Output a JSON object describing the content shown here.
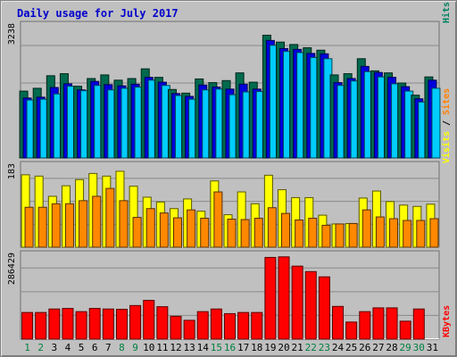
{
  "chart_data": {
    "type": "bar",
    "title": "Daily usage for July 2017",
    "days": [
      "1",
      "2",
      "3",
      "4",
      "5",
      "6",
      "7",
      "8",
      "9",
      "10",
      "11",
      "12",
      "13",
      "14",
      "15",
      "16",
      "17",
      "18",
      "19",
      "20",
      "21",
      "22",
      "23",
      "24",
      "25",
      "26",
      "27",
      "28",
      "29",
      "30",
      "31"
    ],
    "weekend_days": [
      "1",
      "2",
      "8",
      "9",
      "15",
      "16",
      "22",
      "23",
      "29",
      "30"
    ],
    "panels": [
      {
        "id": "hits",
        "max_label": "3238",
        "ylim": [
          0,
          3238
        ],
        "legend": [
          {
            "text": "Pages",
            "color": "#00c0d0"
          },
          {
            "text": "Files",
            "color": "#0000ff"
          },
          {
            "text": "Hits",
            "color": "#008060"
          }
        ],
        "series": [
          {
            "name": "Hits",
            "color": "#006a4e",
            "values": [
              1650,
              1720,
              2030,
              2080,
              1770,
              1960,
              2050,
              1920,
              1960,
              2200,
              1990,
              1690,
              1600,
              1950,
              1860,
              1910,
              2100,
              1870,
              3030,
              2860,
              2800,
              2720,
              2660,
              2050,
              2080,
              2450,
              2150,
              2100,
              1850,
              1550,
              2000
            ]
          },
          {
            "name": "Files",
            "color": "#0000dd",
            "values": [
              1480,
              1500,
              1740,
              1830,
              1680,
              1890,
              1810,
              1780,
              1820,
              1990,
              1870,
              1590,
              1520,
              1800,
              1750,
              1700,
              1820,
              1700,
              2900,
              2700,
              2680,
              2580,
              2570,
              1860,
              1960,
              2260,
              2110,
              1990,
              1760,
              1460,
              1920
            ]
          },
          {
            "name": "Pages",
            "color": "#00ccff",
            "values": [
              1430,
              1450,
              1580,
              1770,
              1660,
              1790,
              1680,
              1720,
              1750,
              1920,
              1790,
              1540,
              1450,
              1680,
              1700,
              1560,
              1630,
              1640,
              2780,
              2630,
              2600,
              2480,
              2450,
              1790,
              1900,
              2130,
              2000,
              1830,
              1650,
              1380,
              1720
            ]
          }
        ]
      },
      {
        "id": "sites",
        "max_label": "183",
        "ylim": [
          0,
          183
        ],
        "legend": [
          {
            "text": "Sites",
            "color": "#ff8000"
          },
          {
            "text": "Visits",
            "color": "#ffff00"
          }
        ],
        "series": [
          {
            "name": "Visits",
            "color": "#ffff00",
            "values": [
              165,
              162,
              116,
              140,
              154,
              168,
              162,
              173,
              139,
              114,
              103,
              88,
              110,
              82,
              151,
              74,
              126,
              99,
              164,
              131,
              113,
              113,
              73,
              53,
              54,
              112,
              128,
              104,
              96,
              93,
              98
            ]
          },
          {
            "name": "Sites",
            "color": "#ff8800",
            "values": [
              91,
              91,
              99,
              99,
              106,
              116,
              134,
              106,
              68,
              88,
              78,
              67,
              85,
              66,
              126,
              64,
              63,
              66,
              90,
              77,
              62,
              66,
              50,
              53,
              54,
              85,
              69,
              65,
              61,
              61,
              65
            ]
          }
        ]
      },
      {
        "id": "kbytes",
        "max_label": "286429",
        "ylim": [
          0,
          286429
        ],
        "legend": [
          {
            "text": "KBytes",
            "color": "#ff0000"
          }
        ],
        "series": [
          {
            "name": "KBytes",
            "color": "#ff0000",
            "values": [
              92000,
              92000,
              104000,
              106000,
              95000,
              106000,
              104000,
              103000,
              116000,
              134000,
              112000,
              79000,
              65000,
              95000,
              104000,
              88000,
              92000,
              92000,
              282000,
              284000,
              252000,
              233000,
              215000,
              113000,
              59000,
              95000,
              108000,
              108000,
              62000,
              104000,
              0
            ]
          }
        ]
      }
    ]
  }
}
